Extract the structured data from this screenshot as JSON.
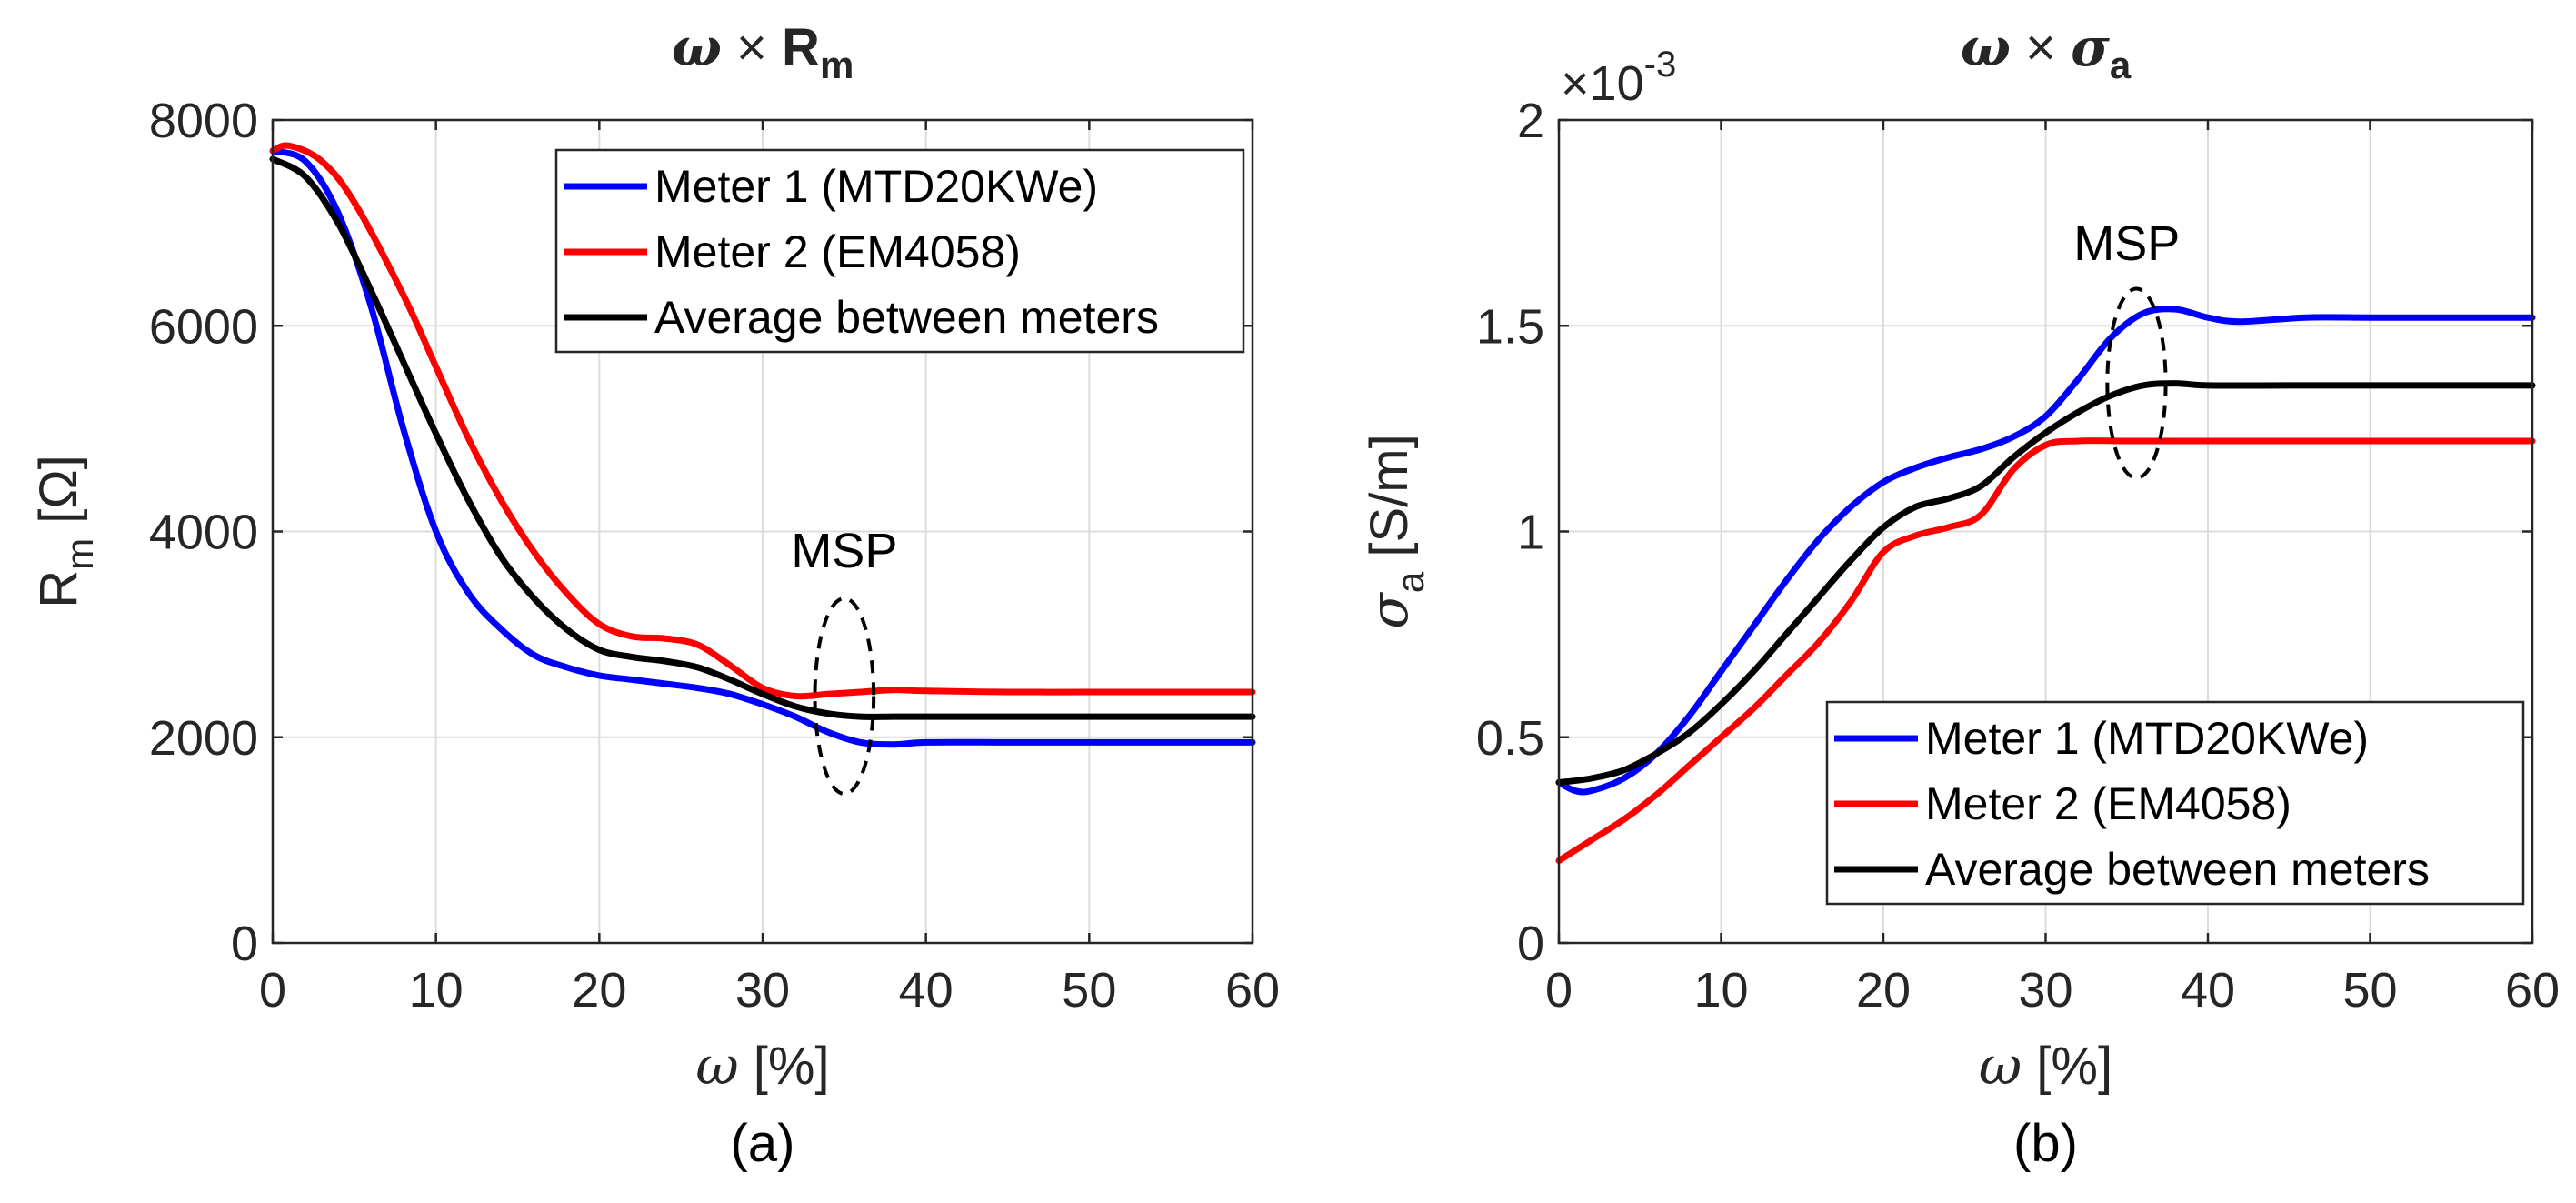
{
  "chart_data": [
    {
      "type": "line",
      "title": {
        "base": "ω",
        "times": "×",
        "var": "R",
        "sub": "m"
      },
      "caption": "(a)",
      "xlabel": {
        "var": "ω",
        "unit": "[%]"
      },
      "ylabel": {
        "var": "R",
        "sub": "m",
        "unit": "[Ω]"
      },
      "xlim": [
        0,
        60
      ],
      "ylim": [
        0,
        8000
      ],
      "xticks": [
        0,
        10,
        20,
        30,
        40,
        50,
        60
      ],
      "yticks": [
        0,
        2000,
        4000,
        6000,
        8000
      ],
      "xtick_labels": [
        "0",
        "10",
        "20",
        "30",
        "40",
        "50",
        "60"
      ],
      "ytick_labels": [
        "0",
        "2000",
        "4000",
        "6000",
        "8000"
      ],
      "grid": true,
      "legend": "top-right",
      "annotation": {
        "text": "MSP",
        "center": [
          35,
          2400
        ],
        "radius": [
          1.8,
          950
        ],
        "label_at": [
          35,
          3650
        ]
      },
      "series": [
        {
          "name": "Meter 1 (MTD20KWe)",
          "color": "#0000ff",
          "points": [
            [
              0,
              7700
            ],
            [
              2,
              7600
            ],
            [
              4,
              7100
            ],
            [
              6,
              6200
            ],
            [
              8,
              5000
            ],
            [
              10,
              4000
            ],
            [
              12,
              3400
            ],
            [
              14,
              3050
            ],
            [
              16,
              2800
            ],
            [
              18,
              2680
            ],
            [
              20,
              2600
            ],
            [
              22,
              2560
            ],
            [
              24,
              2520
            ],
            [
              26,
              2480
            ],
            [
              28,
              2420
            ],
            [
              30,
              2320
            ],
            [
              32,
              2200
            ],
            [
              34,
              2050
            ],
            [
              36,
              1950
            ],
            [
              38,
              1930
            ],
            [
              40,
              1950
            ],
            [
              45,
              1950
            ],
            [
              50,
              1950
            ],
            [
              55,
              1950
            ],
            [
              60,
              1950
            ]
          ]
        },
        {
          "name": "Meter 2 (EM4058)",
          "color": "#ff0000",
          "points": [
            [
              0,
              7700
            ],
            [
              1,
              7750
            ],
            [
              3,
              7600
            ],
            [
              5,
              7200
            ],
            [
              8,
              6300
            ],
            [
              10,
              5600
            ],
            [
              12,
              4900
            ],
            [
              14,
              4300
            ],
            [
              16,
              3800
            ],
            [
              18,
              3400
            ],
            [
              20,
              3100
            ],
            [
              22,
              2980
            ],
            [
              24,
              2960
            ],
            [
              26,
              2900
            ],
            [
              28,
              2700
            ],
            [
              30,
              2480
            ],
            [
              32,
              2400
            ],
            [
              34,
              2420
            ],
            [
              36,
              2440
            ],
            [
              38,
              2460
            ],
            [
              40,
              2450
            ],
            [
              45,
              2440
            ],
            [
              50,
              2440
            ],
            [
              55,
              2440
            ],
            [
              60,
              2440
            ]
          ]
        },
        {
          "name": "Average between meters",
          "color": "#000000",
          "points": [
            [
              0,
              7620
            ],
            [
              2,
              7450
            ],
            [
              4,
              7000
            ],
            [
              6,
              6350
            ],
            [
              8,
              5650
            ],
            [
              10,
              4950
            ],
            [
              12,
              4300
            ],
            [
              14,
              3750
            ],
            [
              16,
              3350
            ],
            [
              18,
              3050
            ],
            [
              20,
              2850
            ],
            [
              22,
              2780
            ],
            [
              24,
              2740
            ],
            [
              26,
              2680
            ],
            [
              28,
              2560
            ],
            [
              30,
              2420
            ],
            [
              32,
              2300
            ],
            [
              34,
              2230
            ],
            [
              36,
              2200
            ],
            [
              38,
              2200
            ],
            [
              40,
              2200
            ],
            [
              45,
              2200
            ],
            [
              50,
              2200
            ],
            [
              55,
              2200
            ],
            [
              60,
              2200
            ]
          ]
        }
      ]
    },
    {
      "type": "line",
      "title": {
        "base": "ω",
        "times": "×",
        "var": "σ",
        "sub": "a"
      },
      "caption": "(b)",
      "xlabel": {
        "var": "ω",
        "unit": "[%]"
      },
      "ylabel": {
        "var": "σ",
        "sub": "a",
        "unit": "[S/m]"
      },
      "exponent": {
        "times": "×",
        "base": "10",
        "sup": "-3"
      },
      "xlim": [
        0,
        60
      ],
      "ylim": [
        0,
        2
      ],
      "xticks": [
        0,
        10,
        20,
        30,
        40,
        50,
        60
      ],
      "yticks": [
        0,
        0.5,
        1,
        1.5,
        2
      ],
      "xtick_labels": [
        "0",
        "10",
        "20",
        "30",
        "40",
        "50",
        "60"
      ],
      "ytick_labels": [
        "0",
        "0.5",
        "1",
        "1.5",
        "2"
      ],
      "grid": true,
      "legend": "bottom-right",
      "annotation": {
        "text": "MSP",
        "center": [
          35.6,
          1.36
        ],
        "radius": [
          1.8,
          0.23
        ],
        "label_at": [
          35,
          1.66
        ]
      },
      "series": [
        {
          "name": "Meter 1 (MTD20KWe)",
          "color": "#0000ff",
          "points": [
            [
              0,
              0.39
            ],
            [
              1,
              0.37
            ],
            [
              2,
              0.37
            ],
            [
              4,
              0.4
            ],
            [
              6,
              0.46
            ],
            [
              8,
              0.55
            ],
            [
              10,
              0.66
            ],
            [
              12,
              0.77
            ],
            [
              14,
              0.88
            ],
            [
              16,
              0.98
            ],
            [
              18,
              1.06
            ],
            [
              20,
              1.12
            ],
            [
              22,
              1.155
            ],
            [
              24,
              1.18
            ],
            [
              26,
              1.2
            ],
            [
              28,
              1.23
            ],
            [
              30,
              1.28
            ],
            [
              32,
              1.37
            ],
            [
              34,
              1.47
            ],
            [
              36,
              1.53
            ],
            [
              38,
              1.54
            ],
            [
              40,
              1.52
            ],
            [
              42,
              1.51
            ],
            [
              46,
              1.52
            ],
            [
              50,
              1.52
            ],
            [
              55,
              1.52
            ],
            [
              60,
              1.52
            ]
          ]
        },
        {
          "name": "Meter 2 (EM4058)",
          "color": "#ff0000",
          "points": [
            [
              0,
              0.2
            ],
            [
              2,
              0.25
            ],
            [
              4,
              0.3
            ],
            [
              6,
              0.36
            ],
            [
              8,
              0.43
            ],
            [
              10,
              0.5
            ],
            [
              12,
              0.57
            ],
            [
              14,
              0.65
            ],
            [
              16,
              0.73
            ],
            [
              18,
              0.83
            ],
            [
              20,
              0.95
            ],
            [
              22,
              0.99
            ],
            [
              24,
              1.01
            ],
            [
              26,
              1.04
            ],
            [
              28,
              1.15
            ],
            [
              30,
              1.21
            ],
            [
              32,
              1.22
            ],
            [
              35,
              1.22
            ],
            [
              40,
              1.22
            ],
            [
              45,
              1.22
            ],
            [
              50,
              1.22
            ],
            [
              55,
              1.22
            ],
            [
              60,
              1.22
            ]
          ]
        },
        {
          "name": "Average between meters",
          "color": "#000000",
          "points": [
            [
              0,
              0.39
            ],
            [
              2,
              0.4
            ],
            [
              4,
              0.42
            ],
            [
              6,
              0.46
            ],
            [
              8,
              0.51
            ],
            [
              10,
              0.58
            ],
            [
              12,
              0.66
            ],
            [
              14,
              0.75
            ],
            [
              16,
              0.84
            ],
            [
              18,
              0.93
            ],
            [
              20,
              1.01
            ],
            [
              22,
              1.06
            ],
            [
              24,
              1.08
            ],
            [
              26,
              1.11
            ],
            [
              28,
              1.18
            ],
            [
              30,
              1.24
            ],
            [
              32,
              1.29
            ],
            [
              34,
              1.33
            ],
            [
              36,
              1.355
            ],
            [
              38,
              1.36
            ],
            [
              40,
              1.355
            ],
            [
              45,
              1.355
            ],
            [
              50,
              1.355
            ],
            [
              55,
              1.355
            ],
            [
              60,
              1.355
            ]
          ]
        }
      ]
    }
  ]
}
